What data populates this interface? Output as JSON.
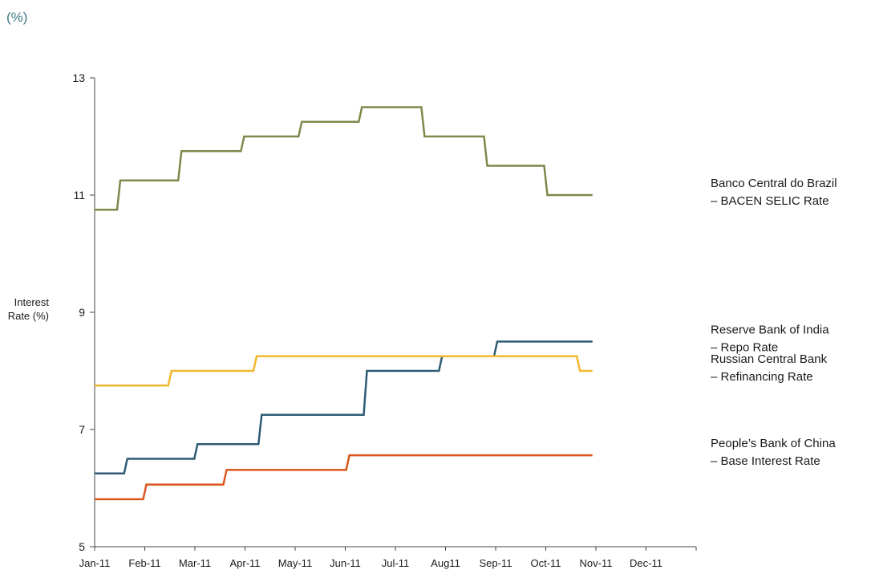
{
  "header": {
    "unit": "(%)"
  },
  "chart_data": {
    "type": "line",
    "step": true,
    "title": "",
    "ylabel_lines": [
      "Interest",
      "Rate (%)"
    ],
    "xlabel": "",
    "ylim": [
      5,
      13
    ],
    "yticks": [
      5,
      7,
      9,
      11,
      13
    ],
    "xlim": [
      0,
      12
    ],
    "x_tick_labels": [
      "Jan-11",
      "Feb-11",
      "Mar-11",
      "Apr-11",
      "May-11",
      "Jun-11",
      "Jul-11",
      "Aug11",
      "Sep-11",
      "Oct-11",
      "Nov-11",
      "Dec-11"
    ],
    "grid": false,
    "series": [
      {
        "label_lines": [
          "Banco Central do Brazil",
          "– BACEN SELIC Rate"
        ],
        "color": "#7b8a4b",
        "label_value": 11.0,
        "points": [
          [
            0,
            10.75
          ],
          [
            0.48,
            11.25
          ],
          [
            1.7,
            11.75
          ],
          [
            2.95,
            12.0
          ],
          [
            4.1,
            12.25
          ],
          [
            5.3,
            12.5
          ],
          [
            6.55,
            12.0
          ],
          [
            7.8,
            11.5
          ],
          [
            9.0,
            11.0
          ],
          [
            9.9,
            11.0
          ]
        ]
      },
      {
        "label_lines": [
          "Reserve Bank of India",
          "– Repo Rate"
        ],
        "color": "#2e5b74",
        "label_value": 8.5,
        "points": [
          [
            0,
            6.25
          ],
          [
            0.62,
            6.5
          ],
          [
            2.02,
            6.75
          ],
          [
            3.3,
            7.25
          ],
          [
            5.4,
            8.0
          ],
          [
            6.9,
            8.25
          ],
          [
            8.0,
            8.5
          ],
          [
            9.9,
            8.5
          ]
        ]
      },
      {
        "label_lines": [
          "Russian Central Bank",
          "– Refinancing Rate"
        ],
        "color": "#f2b82f",
        "label_value": 8.0,
        "points": [
          [
            0,
            7.75
          ],
          [
            1.5,
            8.0
          ],
          [
            3.2,
            8.25
          ],
          [
            9.65,
            8.0
          ],
          [
            9.9,
            8.0
          ]
        ]
      },
      {
        "label_lines": [
          "People’s Bank of China",
          "– Base Interest Rate"
        ],
        "color": "#d9561d",
        "label_value": 6.56,
        "points": [
          [
            0,
            5.81
          ],
          [
            1.0,
            6.06
          ],
          [
            2.6,
            6.31
          ],
          [
            5.05,
            6.56
          ],
          [
            9.9,
            6.56
          ]
        ]
      }
    ]
  }
}
